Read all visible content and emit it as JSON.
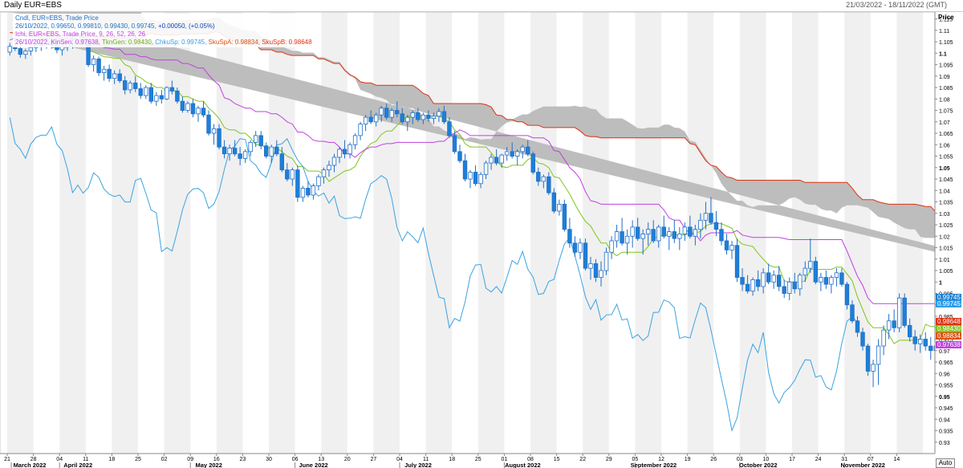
{
  "window": {
    "title": "Daily EUR=EBS",
    "date_range": "21/03/2022 - 18/11/2022 (GMT)",
    "auto_label": "Auto"
  },
  "legend": {
    "line1": "Cndl, EUR=EBS, Trade Price",
    "line2_vals": "26/10/2022, 0.99650, 0.99810, 0.99430, 0.99745,",
    "line2_chg": "+0.00050, (+0.05%)",
    "line3": "Ichi, EUR=EBS, Trade Price,  9, 26, 52, 26, 26",
    "line4_date": "26/10/2022,",
    "line4_kijun": "KinSen: 0.97638,",
    "line4_tenkan": "TknGen: 0.98430,",
    "line4_chikou": "ChkuSp: 0.99745,",
    "line4_spanA": "SkuSpA: 0.98834,",
    "line4_spanB": "SkuSpB: 0.98648"
  },
  "price_tags": [
    {
      "value": "0.99745",
      "color": "#1e7fd6"
    },
    {
      "value": "0.99745",
      "color": "#2a9de8"
    },
    {
      "value": "0.98648",
      "color": "#e03010"
    },
    {
      "value": "0.98430",
      "color": "#7cc51c"
    },
    {
      "value": "0.98834",
      "color": "#e05010"
    },
    {
      "value": "0.97638",
      "color": "#c040e0"
    }
  ],
  "colors": {
    "candle_up": "#ffffff",
    "candle_down": "#1e7fd6",
    "candle_outline": "#1e6ec8",
    "kumo_fill": "#bdbdbd",
    "span_b": "#e03010",
    "tenkan": "#7cc51c",
    "kijun": "#c040e0",
    "chikou": "#3aa3e3"
  },
  "chart_data": {
    "type": "candlestick",
    "title": "Daily EUR=EBS",
    "ylabel": "Price",
    "ylim": [
      0.925,
      1.118
    ],
    "yticks": [
      1.115,
      1.11,
      1.105,
      1.1,
      1.095,
      1.09,
      1.085,
      1.08,
      1.075,
      1.07,
      1.065,
      1.06,
      1.055,
      1.05,
      1.045,
      1.04,
      1.035,
      1.03,
      1.025,
      1.02,
      1.015,
      1.01,
      1.005,
      1.0,
      0.995,
      0.99,
      0.985,
      0.98,
      0.975,
      0.97,
      0.965,
      0.96,
      0.955,
      0.95,
      0.945,
      0.94,
      0.935,
      0.93
    ],
    "ytick_labels": [
      "1.115",
      "1.11",
      "1.105",
      "1.1",
      "1.095",
      "1.09",
      "1.085",
      "1.08",
      "1.075",
      "1.07",
      "1.065",
      "1.06",
      "1.055",
      "1.05",
      "1.045",
      "1.04",
      "1.035",
      "1.03",
      "1.025",
      "1.02",
      "1.015",
      "1.01",
      "1.005",
      "1",
      "0.995",
      "0.99",
      "0.985",
      "0.98",
      "0.975",
      "0.97",
      "0.965",
      "0.96",
      "0.955",
      "0.95",
      "0.945",
      "0.94",
      "0.935",
      "0.93"
    ],
    "bold_yticks": [
      "1.1",
      "1.05",
      "1",
      "0.95"
    ],
    "week_labels": [
      "21",
      "28",
      "04",
      "11",
      "18",
      "25",
      "02",
      "09",
      "16",
      "23",
      "30",
      "06",
      "13",
      "20",
      "27",
      "04",
      "11",
      "18",
      "25",
      "01",
      "08",
      "15",
      "22",
      "29",
      "05",
      "12",
      "19",
      "26",
      "03",
      "10",
      "17",
      "24",
      "31",
      "07",
      "14"
    ],
    "month_labels": [
      "March 2022",
      "April 2022",
      "May 2022",
      "June 2022",
      "July 2022",
      "August 2022",
      "September 2022",
      "October 2022",
      "November 2022"
    ],
    "month_week_index": [
      0,
      2,
      7,
      11,
      15,
      19,
      24,
      28,
      32
    ],
    "last_candle": {
      "date": "26/10/2022",
      "open": 0.9965,
      "high": 0.9981,
      "low": 0.9943,
      "close": 0.99745
    },
    "candles": [
      [
        1.1005,
        1.1045,
        1.099,
        1.103
      ],
      [
        1.103,
        1.1065,
        1.101,
        1.102
      ],
      [
        1.102,
        1.105,
        1.098,
        1.0995
      ],
      [
        1.0995,
        1.102,
        1.0975,
        1.101
      ],
      [
        1.101,
        1.104,
        1.099,
        1.1025
      ],
      [
        1.1025,
        1.1055,
        1.1005,
        1.1035
      ],
      [
        1.1035,
        1.106,
        1.101,
        1.104
      ],
      [
        1.104,
        1.1075,
        1.102,
        1.105
      ],
      [
        1.105,
        1.1065,
        1.102,
        1.1035
      ],
      [
        1.1035,
        1.106,
        1.1,
        1.1015
      ],
      [
        1.1015,
        1.104,
        1.099,
        1.103
      ],
      [
        1.103,
        1.105,
        1.101,
        1.1045
      ],
      [
        1.1045,
        1.107,
        1.102,
        1.106
      ],
      [
        1.106,
        1.109,
        1.104,
        1.1075
      ],
      [
        1.106,
        1.108,
        1.104,
        1.105
      ],
      [
        1.105,
        1.106,
        1.094,
        1.095
      ],
      [
        1.095,
        1.099,
        1.092,
        1.0975
      ],
      [
        1.0975,
        1.0985,
        1.09,
        1.0915
      ],
      [
        1.0915,
        1.0945,
        1.088,
        1.093
      ],
      [
        1.093,
        1.095,
        1.0875,
        1.089
      ],
      [
        1.089,
        1.0925,
        1.0865,
        1.091
      ],
      [
        1.091,
        1.093,
        1.087,
        1.088
      ],
      [
        1.088,
        1.09,
        1.082,
        1.084
      ],
      [
        1.084,
        1.088,
        1.0825,
        1.087
      ],
      [
        1.087,
        1.09,
        1.083,
        1.0845
      ],
      [
        1.0845,
        1.087,
        1.08,
        1.0815
      ],
      [
        1.0815,
        1.086,
        1.08,
        1.085
      ],
      [
        1.085,
        1.087,
        1.078,
        1.079
      ],
      [
        1.079,
        1.083,
        1.077,
        1.0815
      ],
      [
        1.0815,
        1.084,
        1.078,
        1.08
      ],
      [
        1.08,
        1.0855,
        1.0795,
        1.085
      ],
      [
        1.085,
        1.088,
        1.082,
        1.0835
      ],
      [
        1.0835,
        1.085,
        1.078,
        1.079
      ],
      [
        1.079,
        1.081,
        1.074,
        1.075
      ],
      [
        1.075,
        1.079,
        1.074,
        1.078
      ],
      [
        1.078,
        1.08,
        1.072,
        1.0735
      ],
      [
        1.0735,
        1.077,
        1.07,
        1.076
      ],
      [
        1.076,
        1.079,
        1.072,
        1.073
      ],
      [
        1.073,
        1.075,
        1.064,
        1.065
      ],
      [
        1.065,
        1.069,
        1.06,
        1.067
      ],
      [
        1.067,
        1.069,
        1.058,
        1.059
      ],
      [
        1.059,
        1.062,
        1.054,
        1.056
      ],
      [
        1.056,
        1.06,
        1.053,
        1.0585
      ],
      [
        1.0585,
        1.062,
        1.055,
        1.056
      ],
      [
        1.056,
        1.059,
        1.051,
        1.054
      ],
      [
        1.054,
        1.058,
        1.052,
        1.057
      ],
      [
        1.057,
        1.062,
        1.055,
        1.061
      ],
      [
        1.061,
        1.066,
        1.059,
        1.064
      ],
      [
        1.064,
        1.066,
        1.058,
        1.0595
      ],
      [
        1.0595,
        1.061,
        1.054,
        1.055
      ],
      [
        1.055,
        1.06,
        1.052,
        1.059
      ],
      [
        1.059,
        1.062,
        1.055,
        1.056
      ],
      [
        1.056,
        1.059,
        1.048,
        1.049
      ],
      [
        1.049,
        1.052,
        1.044,
        1.045
      ],
      [
        1.045,
        1.05,
        1.042,
        1.049
      ],
      [
        1.049,
        1.051,
        1.035,
        1.037
      ],
      [
        1.037,
        1.042,
        1.035,
        1.041
      ],
      [
        1.041,
        1.044,
        1.037,
        1.038
      ],
      [
        1.038,
        1.043,
        1.036,
        1.042
      ],
      [
        1.042,
        1.047,
        1.04,
        1.046
      ],
      [
        1.046,
        1.05,
        1.043,
        1.049
      ],
      [
        1.049,
        1.053,
        1.046,
        1.051
      ],
      [
        1.051,
        1.056,
        1.048,
        1.0545
      ],
      [
        1.0545,
        1.059,
        1.052,
        1.058
      ],
      [
        1.058,
        1.062,
        1.054,
        1.056
      ],
      [
        1.056,
        1.061,
        1.054,
        1.06
      ],
      [
        1.06,
        1.065,
        1.058,
        1.064
      ],
      [
        1.064,
        1.07,
        1.062,
        1.069
      ],
      [
        1.069,
        1.073,
        1.066,
        1.072
      ],
      [
        1.072,
        1.075,
        1.069,
        1.07
      ],
      [
        1.07,
        1.074,
        1.068,
        1.073
      ],
      [
        1.073,
        1.077,
        1.07,
        1.076
      ],
      [
        1.076,
        1.078,
        1.071,
        1.072
      ],
      [
        1.072,
        1.076,
        1.07,
        1.075
      ],
      [
        1.075,
        1.079,
        1.072,
        1.0735
      ],
      [
        1.0735,
        1.076,
        1.069,
        1.07
      ],
      [
        1.07,
        1.073,
        1.066,
        1.072
      ],
      [
        1.072,
        1.075,
        1.069,
        1.074
      ],
      [
        1.074,
        1.076,
        1.07,
        1.071
      ],
      [
        1.071,
        1.074,
        1.069,
        1.073
      ],
      [
        1.073,
        1.075,
        1.07,
        1.0715
      ],
      [
        1.0715,
        1.074,
        1.069,
        1.0725
      ],
      [
        1.0725,
        1.076,
        1.07,
        1.0745
      ],
      [
        1.0745,
        1.077,
        1.069,
        1.07
      ],
      [
        1.07,
        1.072,
        1.063,
        1.064
      ],
      [
        1.064,
        1.066,
        1.056,
        1.057
      ],
      [
        1.057,
        1.06,
        1.052,
        1.053
      ],
      [
        1.053,
        1.056,
        1.044,
        1.045
      ],
      [
        1.045,
        1.049,
        1.041,
        1.048
      ],
      [
        1.048,
        1.051,
        1.042,
        1.043
      ],
      [
        1.043,
        1.048,
        1.041,
        1.047
      ],
      [
        1.047,
        1.053,
        1.045,
        1.052
      ],
      [
        1.052,
        1.056,
        1.049,
        1.0545
      ],
      [
        1.0545,
        1.058,
        1.051,
        1.052
      ],
      [
        1.052,
        1.056,
        1.05,
        1.0555
      ],
      [
        1.0555,
        1.059,
        1.053,
        1.057
      ],
      [
        1.057,
        1.061,
        1.054,
        1.055
      ],
      [
        1.055,
        1.058,
        1.051,
        1.057
      ],
      [
        1.057,
        1.06,
        1.054,
        1.059
      ],
      [
        1.059,
        1.062,
        1.055,
        1.056
      ],
      [
        1.056,
        1.057,
        1.047,
        1.048
      ],
      [
        1.048,
        1.05,
        1.042,
        1.044
      ],
      [
        1.044,
        1.047,
        1.041,
        1.046
      ],
      [
        1.046,
        1.048,
        1.038,
        1.039
      ],
      [
        1.039,
        1.041,
        1.03,
        1.031
      ],
      [
        1.031,
        1.036,
        1.029,
        1.034
      ],
      [
        1.034,
        1.036,
        1.022,
        1.023
      ],
      [
        1.023,
        1.028,
        1.015,
        1.017
      ],
      [
        1.017,
        1.02,
        1.011,
        1.013
      ],
      [
        1.013,
        1.019,
        1.01,
        1.017
      ],
      [
        1.017,
        1.019,
        1.005,
        1.006
      ],
      [
        1.006,
        1.011,
        1.001,
        1.008
      ],
      [
        1.008,
        1.01,
        1.0,
        1.002
      ],
      [
        1.002,
        1.009,
        0.998,
        1.005
      ],
      [
        1.005,
        1.015,
        1.003,
        1.013
      ],
      [
        1.013,
        1.02,
        1.01,
        1.018
      ],
      [
        1.018,
        1.025,
        1.015,
        1.022
      ],
      [
        1.022,
        1.028,
        1.016,
        1.017
      ],
      [
        1.017,
        1.023,
        1.012,
        1.02
      ],
      [
        1.02,
        1.027,
        1.015,
        1.024
      ],
      [
        1.024,
        1.028,
        1.018,
        1.019
      ],
      [
        1.019,
        1.023,
        1.012,
        1.021
      ],
      [
        1.021,
        1.026,
        1.016,
        1.023
      ],
      [
        1.023,
        1.027,
        1.017,
        1.018
      ],
      [
        1.018,
        1.025,
        1.015,
        1.024
      ],
      [
        1.024,
        1.029,
        1.019,
        1.02
      ],
      [
        1.02,
        1.024,
        1.014,
        1.022
      ],
      [
        1.022,
        1.027,
        1.017,
        1.019
      ],
      [
        1.019,
        1.024,
        1.014,
        1.021
      ],
      [
        1.021,
        1.026,
        1.018,
        1.024
      ],
      [
        1.024,
        1.029,
        1.019,
        1.02
      ],
      [
        1.02,
        1.025,
        1.016,
        1.023
      ],
      [
        1.023,
        1.03,
        1.019,
        1.027
      ],
      [
        1.027,
        1.035,
        1.023,
        1.03
      ],
      [
        1.03,
        1.037,
        1.025,
        1.026
      ],
      [
        1.026,
        1.031,
        1.02,
        1.023
      ],
      [
        1.023,
        1.026,
        1.016,
        1.018
      ],
      [
        1.018,
        1.021,
        1.012,
        1.014
      ],
      [
        1.014,
        1.018,
        1.01,
        1.016
      ],
      [
        1.016,
        1.019,
        1.0,
        1.002
      ],
      [
        1.002,
        1.006,
        0.996,
        0.999
      ],
      [
        0.999,
        1.003,
        0.995,
        0.996
      ],
      [
        0.996,
        1.002,
        0.994,
        1.001
      ],
      [
        1.001,
        1.005,
        0.996,
        0.998
      ],
      [
        0.998,
        1.006,
        0.995,
        1.004
      ],
      [
        1.004,
        1.008,
        0.999,
        1.0
      ],
      [
        1.0,
        1.005,
        0.997,
        1.003
      ],
      [
        1.003,
        1.007,
        0.996,
        0.998
      ],
      [
        0.998,
        1.001,
        0.993,
        0.995
      ],
      [
        0.995,
        1.002,
        0.992,
        1.0
      ],
      [
        1.0,
        1.004,
        0.995,
        0.997
      ],
      [
        0.997,
        1.004,
        0.994,
        1.003
      ],
      [
        1.003,
        1.009,
        1.0,
        1.006
      ],
      [
        1.006,
        1.019,
        1.004,
        1.009
      ],
      [
        1.009,
        1.011,
        0.999,
        1.0
      ],
      [
        1.0,
        1.004,
        0.996,
        1.002
      ],
      [
        1.002,
        1.005,
        0.997,
        0.999
      ],
      [
        0.999,
        1.003,
        0.995,
        1.002
      ],
      [
        1.002,
        1.006,
        0.998,
        1.004
      ],
      [
        1.004,
        1.006,
        0.998,
        0.999
      ],
      [
        0.999,
        1.0,
        0.988,
        0.99
      ],
      [
        0.99,
        0.992,
        0.982,
        0.983
      ],
      [
        0.983,
        0.985,
        0.976,
        0.978
      ],
      [
        0.978,
        0.98,
        0.97,
        0.972
      ],
      [
        0.972,
        0.973,
        0.959,
        0.961
      ],
      [
        0.961,
        0.966,
        0.954,
        0.964
      ],
      [
        0.964,
        0.975,
        0.955,
        0.972
      ],
      [
        0.972,
        0.981,
        0.968,
        0.979
      ],
      [
        0.979,
        0.986,
        0.975,
        0.983
      ],
      [
        0.983,
        0.988,
        0.978,
        0.98
      ],
      [
        0.98,
        0.995,
        0.978,
        0.993
      ],
      [
        0.993,
        0.995,
        0.98,
        0.981
      ],
      [
        0.981,
        0.984,
        0.974,
        0.976
      ],
      [
        0.976,
        0.979,
        0.97,
        0.973
      ],
      [
        0.973,
        0.977,
        0.969,
        0.975
      ],
      [
        0.975,
        0.978,
        0.97,
        0.972
      ],
      [
        0.972,
        0.976,
        0.966,
        0.97
      ],
      [
        0.97,
        0.974,
        0.967,
        0.972
      ],
      [
        0.972,
        0.979,
        0.97,
        0.977
      ],
      [
        0.977,
        0.983,
        0.974,
        0.981
      ],
      [
        0.981,
        0.985,
        0.976,
        0.979
      ],
      [
        0.979,
        0.986,
        0.976,
        0.984
      ],
      [
        0.984,
        0.988,
        0.978,
        0.98
      ],
      [
        0.98,
        0.984,
        0.974,
        0.976
      ],
      [
        0.976,
        0.981,
        0.974,
        0.979
      ],
      [
        0.979,
        0.989,
        0.977,
        0.986
      ],
      [
        0.986,
        0.995,
        0.984,
        0.993
      ],
      [
        0.993,
        0.996,
        0.988,
        0.996
      ],
      [
        0.9965,
        0.9981,
        0.9943,
        0.99745
      ]
    ]
  }
}
